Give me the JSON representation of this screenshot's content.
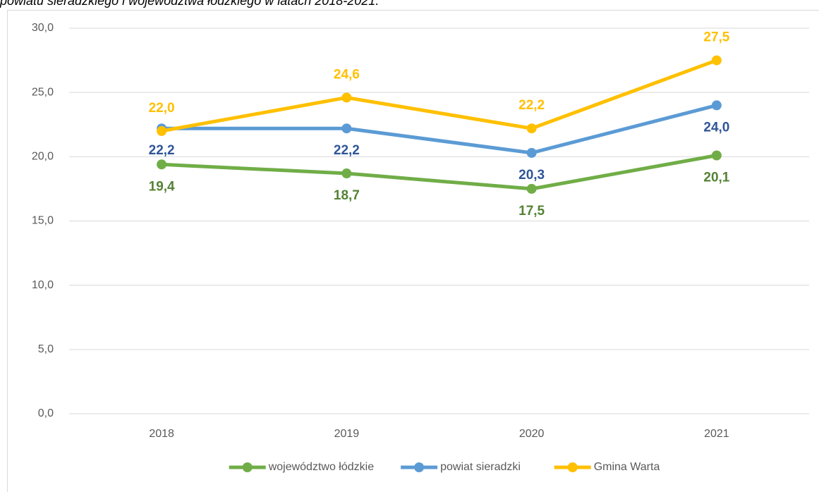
{
  "chart_data": {
    "type": "line",
    "title": "powiatu sieradzkiego i województwa łódzkiego w latach 2018-2021.",
    "categories": [
      "2018",
      "2019",
      "2020",
      "2021"
    ],
    "series": [
      {
        "name": "województwo łódzkie",
        "color": "#70ad47",
        "label_color": "#548235",
        "label_position": "below",
        "values": [
          19.4,
          18.7,
          17.5,
          20.1
        ],
        "value_labels": [
          "19,4",
          "18,7",
          "17,5",
          "20,1"
        ]
      },
      {
        "name": "powiat sieradzki",
        "color": "#5b9bd5",
        "label_color": "#2f5597",
        "label_position": "below",
        "values": [
          22.2,
          22.2,
          20.3,
          24.0
        ],
        "value_labels": [
          "22,2",
          "22,2",
          "20,3",
          "24,0"
        ]
      },
      {
        "name": "Gmina Warta",
        "color": "#ffc000",
        "label_color": "#ffc000",
        "label_position": "above",
        "values": [
          22.0,
          24.6,
          22.2,
          27.5
        ],
        "value_labels": [
          "22,0",
          "24,6",
          "22,2",
          "27,5"
        ]
      }
    ],
    "ylim": [
      0,
      30
    ],
    "yticks": [
      {
        "value": 0,
        "label": "0,0"
      },
      {
        "value": 5,
        "label": "5,0"
      },
      {
        "value": 10,
        "label": "10,0"
      },
      {
        "value": 15,
        "label": "15,0"
      },
      {
        "value": 20,
        "label": "20,0"
      },
      {
        "value": 25,
        "label": "25,0"
      },
      {
        "value": 30,
        "label": "30,0"
      }
    ],
    "grid": true,
    "legend": "bottom"
  }
}
